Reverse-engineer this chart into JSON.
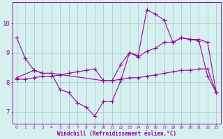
{
  "xlabel": "Windchill (Refroidissement éolien,°C)",
  "bg_color": "#d6f0f0",
  "grid_color": "#aacccc",
  "line_color": "#990099",
  "line1_x": [
    0,
    1,
    2,
    3,
    4,
    5,
    6,
    7,
    8,
    9,
    10,
    11,
    12,
    13,
    14,
    15,
    16,
    17,
    18,
    19,
    20,
    21,
    22,
    23
  ],
  "line1_y": [
    9.5,
    8.8,
    8.4,
    8.3,
    8.3,
    7.75,
    7.65,
    7.3,
    7.15,
    6.85,
    7.35,
    7.35,
    8.05,
    9.0,
    8.9,
    10.45,
    10.3,
    10.1,
    9.35,
    9.5,
    9.45,
    9.4,
    8.2,
    7.65
  ],
  "line2_x": [
    0,
    2,
    3,
    4,
    10,
    11,
    12,
    13,
    14,
    15,
    16,
    17,
    18,
    19,
    20,
    21,
    22,
    23
  ],
  "line2_y": [
    8.15,
    8.4,
    8.3,
    8.3,
    8.05,
    8.05,
    8.6,
    9.0,
    8.85,
    9.05,
    9.15,
    9.35,
    9.35,
    9.5,
    9.45,
    9.45,
    9.35,
    7.65
  ],
  "line3_x": [
    0,
    1,
    2,
    3,
    4,
    5,
    6,
    7,
    8,
    9,
    10,
    11,
    12,
    13,
    14,
    15,
    16,
    17,
    18,
    19,
    20,
    21,
    22,
    23
  ],
  "line3_y": [
    8.1,
    8.1,
    8.15,
    8.2,
    8.2,
    8.25,
    8.3,
    8.35,
    8.4,
    8.45,
    8.05,
    8.05,
    8.1,
    8.15,
    8.15,
    8.2,
    8.25,
    8.3,
    8.35,
    8.4,
    8.4,
    8.45,
    8.45,
    7.65
  ],
  "xlim": [
    -0.5,
    23.5
  ],
  "ylim": [
    6.6,
    10.7
  ],
  "yticks": [
    7,
    8,
    9,
    10
  ],
  "xticks": [
    0,
    1,
    2,
    3,
    4,
    5,
    6,
    7,
    8,
    9,
    10,
    11,
    12,
    13,
    14,
    15,
    16,
    17,
    18,
    19,
    20,
    21,
    22,
    23
  ],
  "marker": "+",
  "marker_size": 4,
  "linewidth": 0.8
}
